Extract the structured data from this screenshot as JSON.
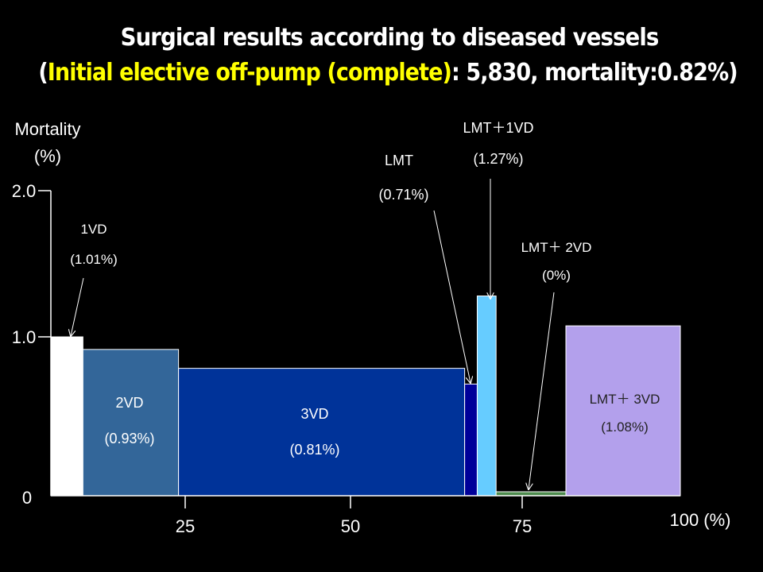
{
  "chart_data": {
    "type": "bar",
    "variant": "marimekko",
    "title": "Surgical results according to diseased vessels",
    "subtitle": {
      "open": "(",
      "highlight": "Initial elective off-pump (complete)",
      "rest": ": 5,830, mortality:0.82%)"
    },
    "ylabel_line1": "Mortality",
    "ylabel_line2": "(%)",
    "xlabel": "100 (%)",
    "ylim": [
      0,
      2.0
    ],
    "xlim": [
      0,
      100
    ],
    "y_ticks": [
      "0",
      "1.0",
      "2.0"
    ],
    "x_ticks": [
      "25",
      "50",
      "75"
    ],
    "categories": [
      {
        "name": "1VD",
        "label": "(1.01%)",
        "mortality": 1.01,
        "share": 5.1,
        "color": "#ffffff"
      },
      {
        "name": "2VD",
        "label": "(0.93%)",
        "mortality": 0.93,
        "share": 15.2,
        "color": "#336699"
      },
      {
        "name": "3VD",
        "label": "(0.81%)",
        "mortality": 0.81,
        "share": 45.5,
        "color": "#003399"
      },
      {
        "name": "LMT",
        "label": "(0.71%)",
        "mortality": 0.71,
        "share": 2.0,
        "color": "#000099"
      },
      {
        "name": "LMT＋1VD",
        "label": "(1.27%)",
        "mortality": 1.27,
        "share": 3.0,
        "color": "#66ccff"
      },
      {
        "name": "LMT＋ 2VD",
        "label": "(0%)",
        "mortality": 0,
        "share": 11.1,
        "color": "#4d8b4d"
      },
      {
        "name": "LMT＋ 3VD",
        "label": "(1.08%)",
        "mortality": 1.08,
        "share": 18.2,
        "color": "#b3a0ec"
      }
    ]
  }
}
